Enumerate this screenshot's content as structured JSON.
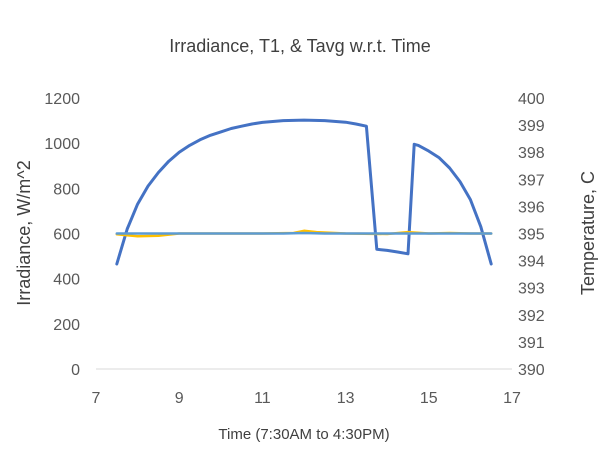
{
  "chart_data": {
    "type": "line",
    "title": "Irradiance, T1, & Tavg w.r.t. Time",
    "xlabel": "Time (7:30AM to 4:30PM)",
    "ylabel": "Irradiance, W/m^2",
    "y2label": "Temperature, C",
    "xlim": [
      7,
      17
    ],
    "ylim": [
      0,
      1200
    ],
    "y2lim": [
      390,
      400
    ],
    "xticks": [
      7,
      9,
      11,
      13,
      15,
      17
    ],
    "yticks": [
      0,
      200,
      400,
      600,
      800,
      1000,
      1200
    ],
    "y2ticks": [
      390,
      391,
      392,
      393,
      394,
      395,
      396,
      397,
      398,
      399,
      400
    ],
    "grid": false,
    "legend": "none",
    "series": [
      {
        "axis": "left",
        "color": "#4472c4",
        "points": [
          [
            7.5,
            465
          ],
          [
            7.75,
            620
          ],
          [
            8.0,
            730
          ],
          [
            8.25,
            810
          ],
          [
            8.5,
            870
          ],
          [
            8.75,
            920
          ],
          [
            9.0,
            960
          ],
          [
            9.25,
            990
          ],
          [
            9.5,
            1015
          ],
          [
            9.75,
            1035
          ],
          [
            10.0,
            1050
          ],
          [
            10.25,
            1065
          ],
          [
            10.5,
            1075
          ],
          [
            10.75,
            1085
          ],
          [
            11.0,
            1092
          ],
          [
            11.5,
            1100
          ],
          [
            12.0,
            1102
          ],
          [
            12.5,
            1100
          ],
          [
            13.0,
            1093
          ],
          [
            13.25,
            1085
          ],
          [
            13.5,
            1075
          ],
          [
            13.75,
            530
          ],
          [
            14.0,
            525
          ],
          [
            14.25,
            518
          ],
          [
            14.5,
            510
          ],
          [
            14.65,
            995
          ],
          [
            14.75,
            990
          ],
          [
            15.0,
            965
          ],
          [
            15.25,
            935
          ],
          [
            15.5,
            890
          ],
          [
            15.75,
            830
          ],
          [
            16.0,
            750
          ],
          [
            16.25,
            630
          ],
          [
            16.5,
            465
          ]
        ]
      },
      {
        "axis": "right",
        "color": "#ffc000",
        "points": [
          [
            7.5,
            394.97
          ],
          [
            8.0,
            394.9
          ],
          [
            8.5,
            394.92
          ],
          [
            9.0,
            395.0
          ],
          [
            10.0,
            395.0
          ],
          [
            11.0,
            395.0
          ],
          [
            11.75,
            395.02
          ],
          [
            12.0,
            395.1
          ],
          [
            12.3,
            395.05
          ],
          [
            13.0,
            395.0
          ],
          [
            14.0,
            394.98
          ],
          [
            14.5,
            395.05
          ],
          [
            15.0,
            395.0
          ],
          [
            15.5,
            395.02
          ],
          [
            16.0,
            395.0
          ],
          [
            16.5,
            395.0
          ]
        ]
      },
      {
        "axis": "right",
        "color": "#5b9bd5",
        "points": [
          [
            7.5,
            395.0
          ],
          [
            8.5,
            395.0
          ],
          [
            9.5,
            395.0
          ],
          [
            10.5,
            395.0
          ],
          [
            11.5,
            395.0
          ],
          [
            12.0,
            395.02
          ],
          [
            12.5,
            395.0
          ],
          [
            13.5,
            395.0
          ],
          [
            14.5,
            395.0
          ],
          [
            15.5,
            395.0
          ],
          [
            16.5,
            395.0
          ]
        ]
      }
    ]
  }
}
